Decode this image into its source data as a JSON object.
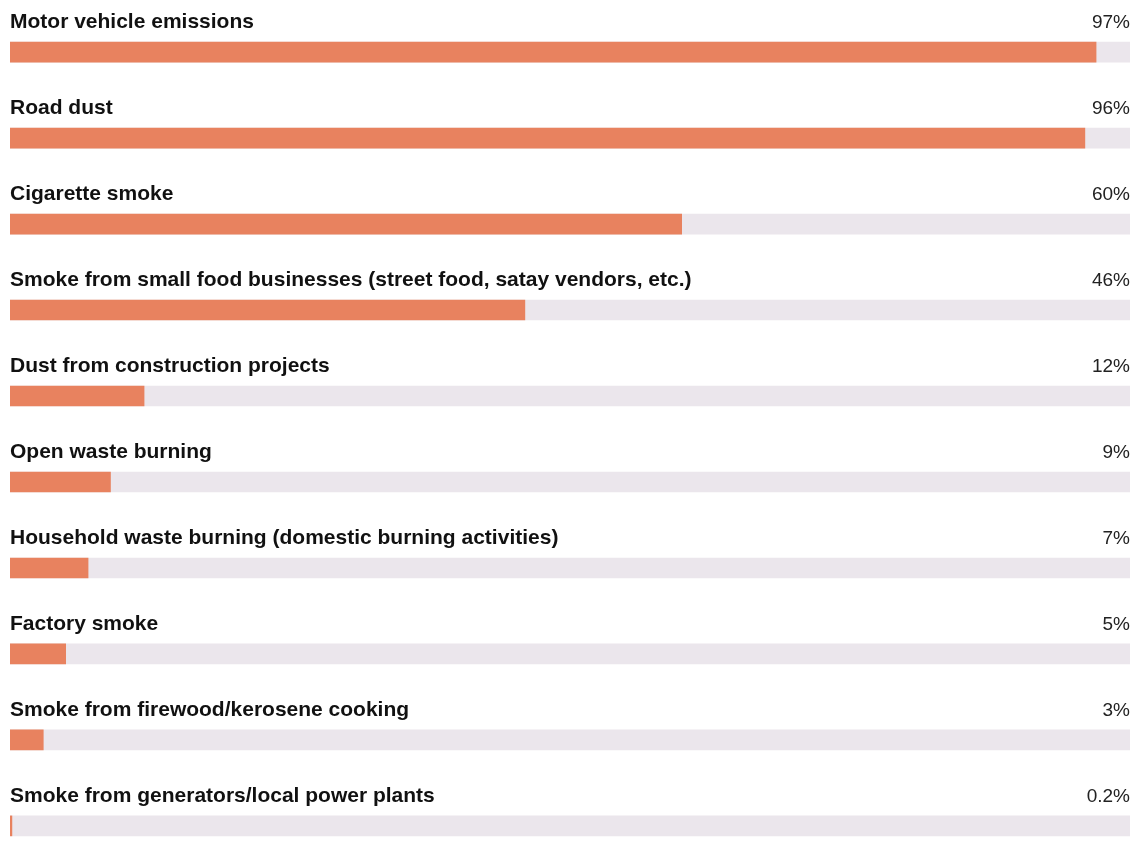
{
  "chart_data": {
    "type": "bar",
    "orientation": "horizontal",
    "categories": [
      "Motor vehicle emissions",
      "Road dust",
      "Cigarette smoke",
      "Smoke from small food businesses (street food, satay vendors, etc.)",
      "Dust from construction projects",
      "Open waste burning",
      "Household waste burning (domestic burning activities)",
      "Factory smoke",
      "Smoke from firewood/kerosene cooking",
      "Smoke from generators/local power plants"
    ],
    "values": [
      97,
      96,
      60,
      46,
      12,
      9,
      7,
      5,
      3,
      0.2
    ],
    "value_labels": [
      "97%",
      "96%",
      "60%",
      "46%",
      "12%",
      "9%",
      "7%",
      "5%",
      "3%",
      "0.2%"
    ],
    "color": "#e8825f",
    "xlim": [
      0,
      100
    ],
    "tick_labels": false
  }
}
